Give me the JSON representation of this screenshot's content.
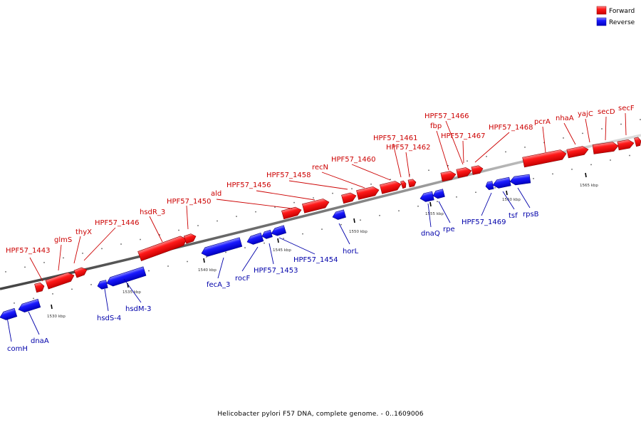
{
  "legend": [
    {
      "label": "Forward",
      "color": "#ff0000"
    },
    {
      "label": "Reverse",
      "color": "#0000ff"
    }
  ],
  "caption": "Helicobacter pylori F57 DNA, complete genome. - 0..1609006",
  "colors": {
    "forward": "#e60000",
    "reverse": "#1414e6",
    "backbone": "#888888",
    "forward_label": "#cc0000",
    "reverse_label": "#0000aa"
  },
  "ticks": [
    "1530 kbp",
    "1535 kbp",
    "1540 kbp",
    "1545 kbp",
    "1550 kbp",
    "1555 kbp",
    "1560 kbp",
    "1565 kbp"
  ],
  "forward_labels": [
    "HPF57_1443",
    "glmS",
    "thyX",
    "HPF57_1446",
    "hsdR_3",
    "HPF57_1450",
    "ald",
    "HPF57_1456",
    "HPF57_1458",
    "recN",
    "HPF57_1460",
    "HPF57_1461",
    "HPF57_1462",
    "HPF57_1466",
    "fbp",
    "HPF57_1467",
    "HPF57_1468",
    "pcrA",
    "nhaA",
    "yajC",
    "secD",
    "secF"
  ],
  "reverse_labels": [
    "comH",
    "dnaA",
    "hsdS-4",
    "hsdM-3",
    "fecA_3",
    "rocF",
    "HPF57_1453",
    "HPF57_1454",
    "horL",
    "dnaQ",
    "rpe",
    "HPF57_1469",
    "tsf",
    "rpsB"
  ]
}
